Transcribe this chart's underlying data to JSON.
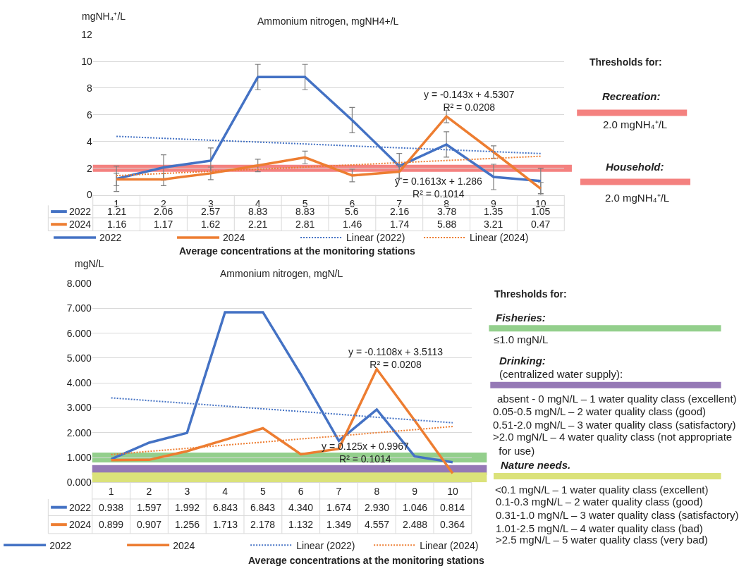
{
  "chart_data": [
    {
      "type": "line",
      "title": "Ammonium nitrogen, mgNH4+/L",
      "ylabel": "mgNH₄⁺/L",
      "xlabel": "Average concentrations at the monitoring stations",
      "categories": [
        "1",
        "2",
        "3",
        "4",
        "5",
        "6",
        "7",
        "8",
        "9",
        "10"
      ],
      "series": [
        {
          "name": "2022",
          "color": "#4472c4",
          "line_style": "solid",
          "values": [
            1.21,
            2.06,
            2.57,
            8.83,
            8.83,
            5.6,
            2.16,
            3.78,
            1.35,
            1.05
          ],
          "errors": [
            0.95,
            0.95,
            0.95,
            0.95,
            0.95,
            0.95,
            0.95,
            0.95,
            0.95,
            0.95
          ],
          "value_labels": [
            "1.21",
            "2.06",
            "2.57",
            "8.83",
            "8.83",
            "5.6",
            "2.16",
            "3.78",
            "1.35",
            "1.05"
          ]
        },
        {
          "name": "2024",
          "color": "#ed7d31",
          "line_style": "solid",
          "values": [
            1.16,
            1.17,
            1.62,
            2.21,
            2.81,
            1.46,
            1.74,
            5.88,
            3.21,
            0.47
          ],
          "errors": [
            0.47,
            0.47,
            0.47,
            0.47,
            0.47,
            0.47,
            0.47,
            0.47,
            0.47,
            0.47
          ],
          "value_labels": [
            "1.16",
            "1.17",
            "1.62",
            "2.21",
            "2.81",
            "1.46",
            "1.74",
            "5.88",
            "3.21",
            "0.47"
          ]
        },
        {
          "name": "Linear (2022)",
          "color": "#4472c4",
          "line_style": "dotted",
          "values": [
            4.39,
            4.24,
            4.1,
            3.96,
            3.82,
            3.67,
            3.53,
            3.39,
            3.24,
            3.1
          ]
        },
        {
          "name": "Linear (2024)",
          "color": "#ed7d31",
          "line_style": "dotted",
          "values": [
            1.45,
            1.61,
            1.77,
            1.93,
            2.09,
            2.25,
            2.42,
            2.58,
            2.74,
            2.9
          ]
        }
      ],
      "ylim": [
        0,
        12
      ],
      "yticks": [
        0,
        2,
        4,
        6,
        8,
        10,
        12
      ],
      "grid": "y",
      "legend": "bottom",
      "marker": "none",
      "ref_lines": [
        {
          "axis": "y",
          "value": 2.0,
          "color": "#f4817f"
        }
      ],
      "annotations": [
        "y = -0.143x + 4.5307\nR² = 0.0208",
        "y = 0.1613x + 1.286\nR² = 0.1014"
      ]
    },
    {
      "type": "other",
      "title": "Thresholds for:",
      "annotations": [
        "Recreation:",
        "2.0 mgNH₄⁺/L",
        "Household:",
        "2.0 mgNH₄⁺/L"
      ]
    },
    {
      "type": "line",
      "title": "Ammonium nitrogen, mgN/L",
      "ylabel": "mgN/L",
      "xlabel": "Average concentrations at the monitoring stations",
      "categories": [
        "1",
        "2",
        "3",
        "4",
        "5",
        "6",
        "7",
        "8",
        "9",
        "10"
      ],
      "series": [
        {
          "name": "2022",
          "color": "#4472c4",
          "line_style": "solid",
          "values": [
            0.938,
            1.597,
            1.992,
            6.843,
            6.843,
            4.34,
            1.674,
            2.93,
            1.046,
            0.814
          ],
          "value_labels": [
            "0.938",
            "1.597",
            "1.992",
            "6.843",
            "6.843",
            "4.340",
            "1.674",
            "2.930",
            "1.046",
            "0.814"
          ]
        },
        {
          "name": "2024",
          "color": "#ed7d31",
          "line_style": "solid",
          "values": [
            0.899,
            0.907,
            1.256,
            1.713,
            2.178,
            1.132,
            1.349,
            4.557,
            2.488,
            0.364
          ],
          "value_labels": [
            "0.899",
            "0.907",
            "1.256",
            "1.713",
            "2.178",
            "1.132",
            "1.349",
            "4.557",
            "2.488",
            "0.364"
          ]
        },
        {
          "name": "Linear (2022)",
          "color": "#4472c4",
          "line_style": "dotted",
          "values": [
            3.4,
            3.29,
            3.18,
            3.07,
            2.96,
            2.85,
            2.74,
            2.62,
            2.51,
            2.4
          ]
        },
        {
          "name": "Linear (2024)",
          "color": "#ed7d31",
          "line_style": "dotted",
          "values": [
            1.12,
            1.25,
            1.37,
            1.5,
            1.62,
            1.75,
            1.87,
            2.0,
            2.12,
            2.25
          ]
        }
      ],
      "ylim": [
        0,
        8
      ],
      "yticks": [
        {
          "value": 0,
          "label": "0.000"
        },
        {
          "value": 1,
          "label": "1.000"
        },
        {
          "value": 2,
          "label": "2.000"
        },
        {
          "value": 3,
          "label": "3.000"
        },
        {
          "value": 4,
          "label": "4.000"
        },
        {
          "value": 5,
          "label": "5.000"
        },
        {
          "value": 6,
          "label": "6.000"
        },
        {
          "value": 7,
          "label": "7.000"
        },
        {
          "value": 8,
          "label": "8.000"
        }
      ],
      "grid": "y",
      "legend": "bottom",
      "marker": "none",
      "ref_lines": [
        {
          "axis": "y",
          "value": 1.0,
          "color": "#93cf8c"
        },
        {
          "axis": "y",
          "value": 0.5,
          "color": "#9579b6"
        },
        {
          "axis": "y",
          "value": 0.2,
          "color": "#dbe27a"
        }
      ],
      "annotations": [
        "y = -0.1108x + 3.5113\nR² = 0.0208",
        "y = 0.125x + 0.9967\nR² = 0.1014"
      ]
    },
    {
      "type": "other",
      "title": "Thresholds for:",
      "annotations": [
        "Fisheries:",
        "≤1.0 mgN/L",
        "Drinking:",
        "(centralized water supply):",
        "absent - 0 mgN/L – 1 water quality class (excellent)",
        "0.05-0.5 mgN/L – 2 water quality class (good)",
        "0.51-2.0 mgN/L – 3 water quality class (satisfactory)",
        ">2.0 mgN/L – 4 water quality class (not appropriate\n  for use)",
        "Nature needs.",
        "<0.1 mgN/L – 1 water quality class (excellent)",
        "0.1-0.3 mgN/L – 2 water quality class (good)",
        "0.31-1.0 mgN/L – 3 water quality class (satisfactory)",
        "1.01-2.5 mgN/L – 4 water quality class (bad)",
        ">2.5 mgN/L – 5 water quality class (very bad)"
      ]
    }
  ]
}
